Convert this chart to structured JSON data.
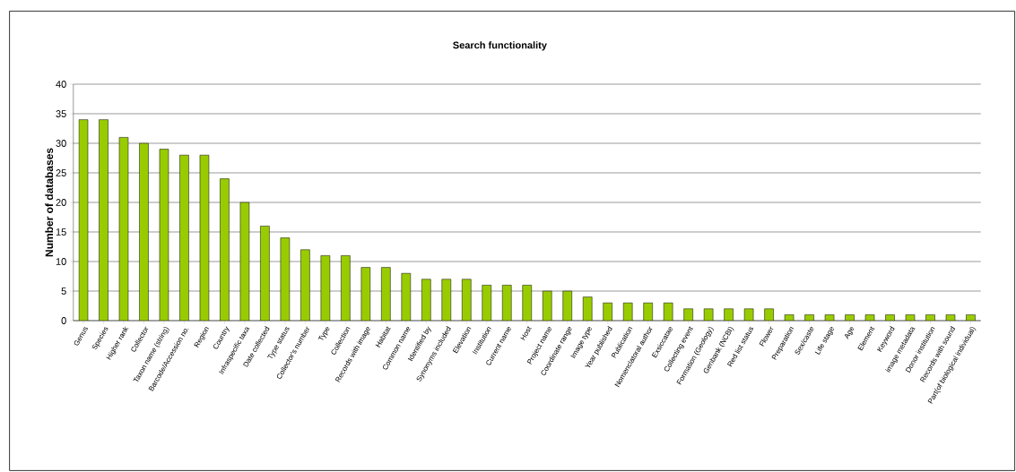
{
  "chart_data": {
    "type": "bar",
    "title": "Search functionality",
    "ylabel": "Number of databases",
    "categories": [
      "Genus",
      "Species",
      "Higher rank",
      "Collector",
      "Taxon name (string)",
      "Barcode/Accession no.",
      "Region",
      "Country",
      "Infraspecific taxa",
      "Date collected",
      "Type status",
      "Collector's number",
      "Type",
      "Collection",
      "Records with image",
      "Habitat",
      "Common name",
      "Identified by",
      "Synonyms included",
      "Elevation",
      "Institution",
      "Current name",
      "Host",
      "Project name",
      "Coordinate range",
      "Image type",
      "Year published",
      "Publication",
      "Nomenclatoral author",
      "Exsiccatae",
      "Collecting event",
      "Formation (Geology)",
      "Genbank (NCBI)",
      "Red list status",
      "Flower",
      "Preparation",
      "Sex/caste",
      "Life stage",
      "Age",
      "Element",
      "Keyword",
      "image metadata",
      "Donor institution",
      "Records with sound",
      "Part(of biological individual)"
    ],
    "values": [
      34,
      34,
      31,
      30,
      29,
      28,
      28,
      24,
      20,
      16,
      14,
      12,
      11,
      11,
      9,
      9,
      8,
      7,
      7,
      7,
      6,
      6,
      6,
      5,
      5,
      4,
      3,
      3,
      3,
      3,
      2,
      2,
      2,
      2,
      2,
      1,
      1,
      1,
      1,
      1,
      1,
      1,
      1,
      1,
      1
    ],
    "color": "#99cc00",
    "ylim": [
      0,
      40
    ],
    "yticks": [
      0,
      5,
      10,
      15,
      20,
      25,
      30,
      35,
      40
    ],
    "grid": "y"
  }
}
